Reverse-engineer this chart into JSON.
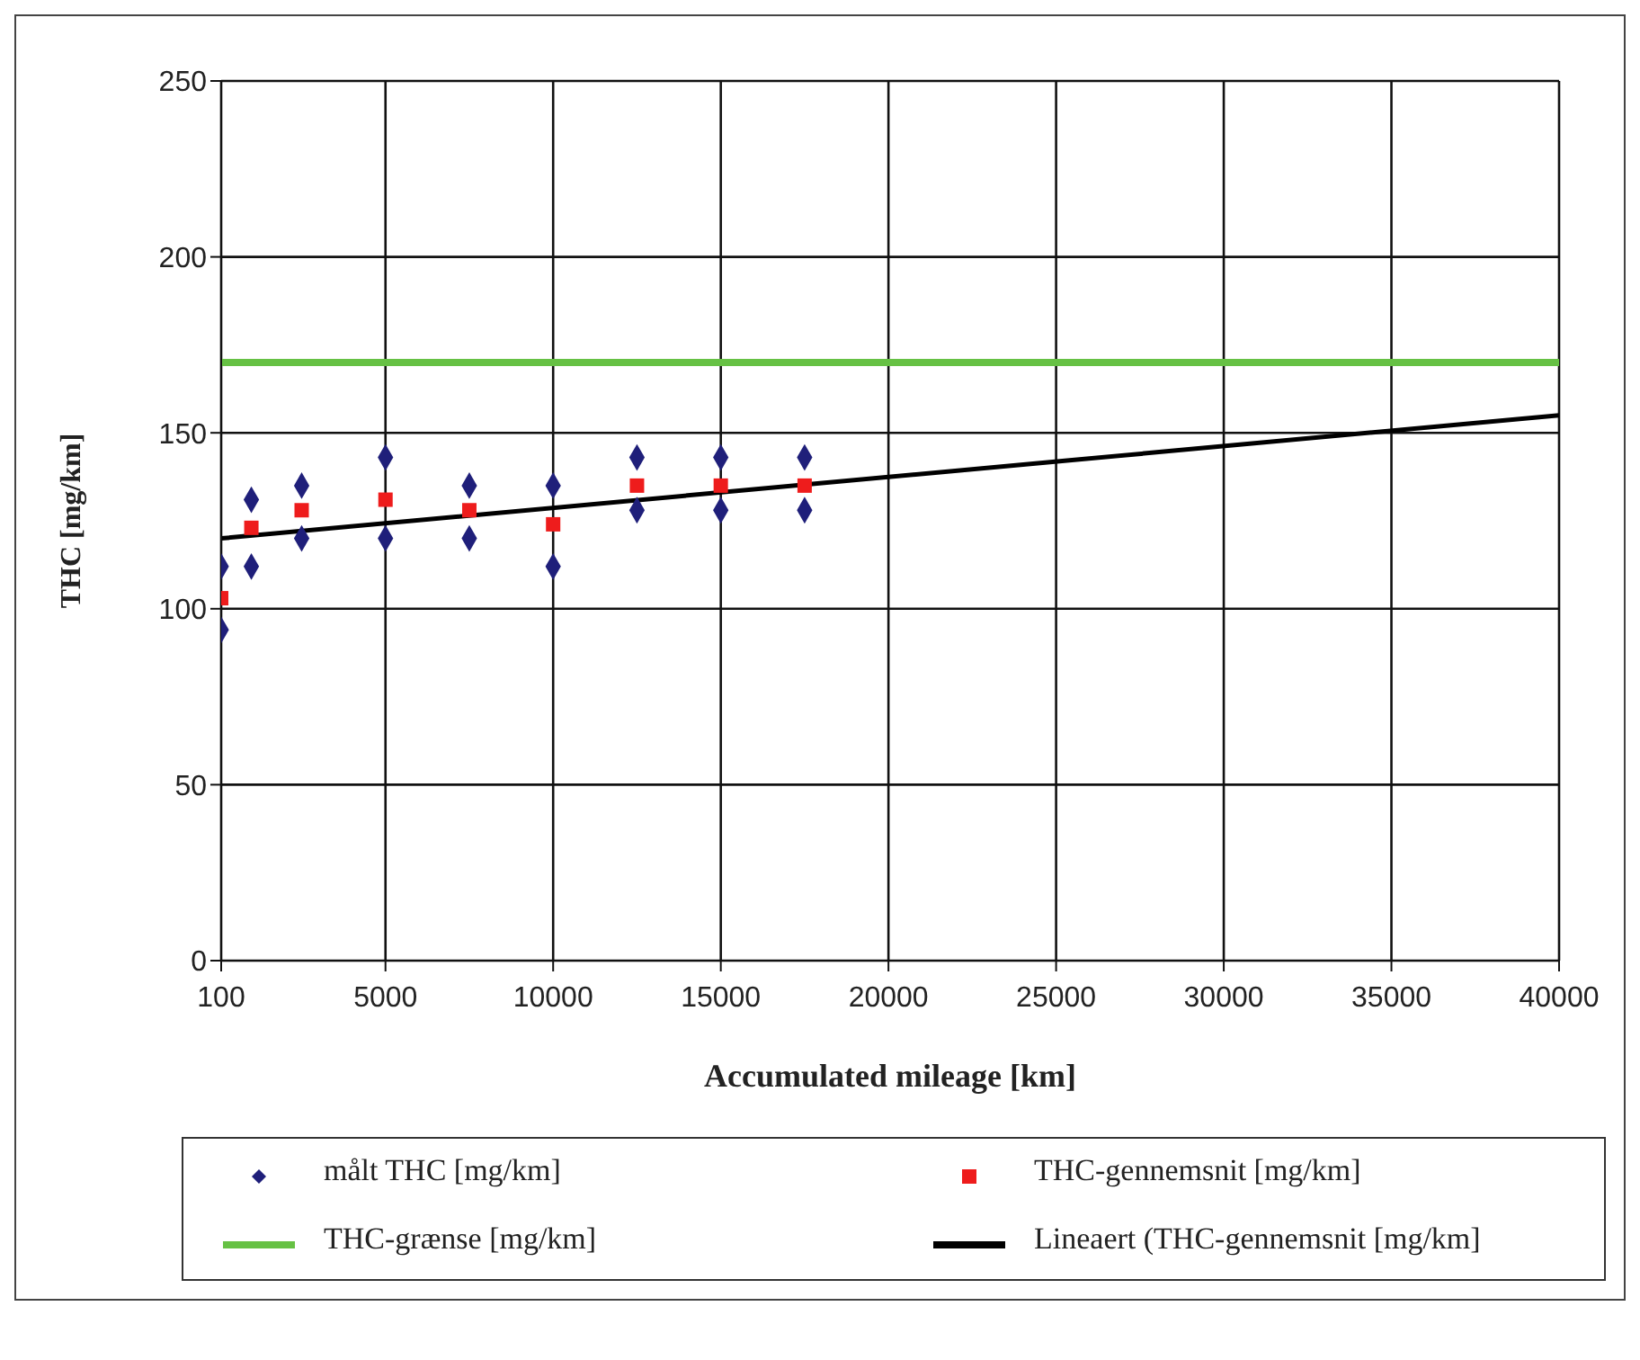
{
  "chart_data": {
    "type": "scatter",
    "xlabel": "Accumulated mileage [km]",
    "ylabel": "THC [mg/km]",
    "xlim": [
      100,
      40000
    ],
    "xticks": [
      100,
      5000,
      10000,
      15000,
      20000,
      25000,
      30000,
      35000,
      40000
    ],
    "ylim": [
      0,
      250
    ],
    "yticks": [
      0,
      50,
      100,
      150,
      200,
      250
    ],
    "grid": true,
    "legend": "bottom",
    "series": [
      {
        "name": "målt THC [mg/km]",
        "marker": "diamond",
        "color": "#1f1f7a",
        "x": [
          100,
          100,
          1000,
          1000,
          2500,
          2500,
          5000,
          5000,
          7500,
          7500,
          10000,
          10000,
          12500,
          12500,
          15000,
          15000,
          17500,
          17500
        ],
        "values": [
          112,
          94,
          131,
          112,
          135,
          120,
          143,
          120,
          135,
          120,
          135,
          112,
          143,
          128,
          143,
          128,
          143,
          128
        ]
      },
      {
        "name": "THC-gennemsnit [mg/km]",
        "marker": "square",
        "color": "#ee1c1c",
        "x": [
          100,
          1000,
          2500,
          5000,
          7500,
          10000,
          12500,
          15000,
          17500
        ],
        "values": [
          103,
          123,
          128,
          131,
          128,
          124,
          135,
          135,
          135
        ]
      },
      {
        "name": "THC-grænse [mg/km]",
        "type": "line",
        "marker": "none",
        "color": "#66c144",
        "x": [
          100,
          40000
        ],
        "values": [
          170,
          170
        ]
      },
      {
        "name": "Lineaert (THC-gennemsnit [mg/km]",
        "type": "line",
        "marker": "none",
        "color": "#000000",
        "x": [
          100,
          40000
        ],
        "values": [
          120,
          155
        ]
      }
    ]
  }
}
